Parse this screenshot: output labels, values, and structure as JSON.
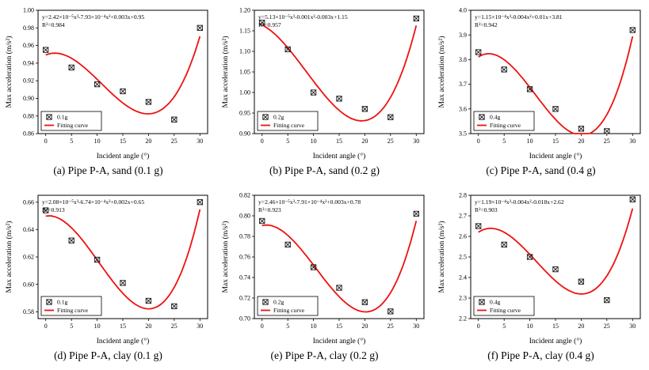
{
  "colors": {
    "curve": "#ee1111",
    "marker": "#1a1a1a",
    "axis": "#000000",
    "background": "#ffffff"
  },
  "marker_style": "open-square-x",
  "chart_data": [
    {
      "type": "scatter",
      "caption": "(a) Pipe P-A, sand (0.1 g)",
      "equation": "y=2.42×10⁻⁵x³-7.93×10⁻⁴x²+0.003x+0.95",
      "r_squared": "R²=0.984",
      "legend": [
        "0.1g",
        "Fitting curve"
      ],
      "legend_position": "lower-left",
      "grid": false,
      "xlabel": "Incident angle (°)",
      "ylabel": "Max acceleration (m/s²)",
      "x": [
        0,
        5,
        10,
        15,
        20,
        25,
        30
      ],
      "y": [
        0.955,
        0.935,
        0.916,
        0.908,
        0.896,
        0.876,
        0.98
      ],
      "xlim": [
        -1.5,
        31.5
      ],
      "ylim": [
        0.86,
        1.0
      ],
      "xticks": [
        0,
        5,
        10,
        15,
        20,
        25,
        30
      ],
      "yticks": [
        0.86,
        0.88,
        0.9,
        0.92,
        0.94,
        0.96,
        0.98,
        1.0
      ],
      "ytick_decimals": 2
    },
    {
      "type": "scatter",
      "caption": "(b) Pipe P-A, sand (0.2 g)",
      "equation": "y=5.13×10⁻⁵x³-0.001x²-0.003x+1.15",
      "r_squared": "R²=0.957",
      "legend": [
        "0.2g",
        "Fitting curve"
      ],
      "legend_position": "lower-left",
      "grid": false,
      "xlabel": "Incident angle (°)",
      "ylabel": "Max acceleration (m/s²)",
      "x": [
        0,
        5,
        10,
        15,
        20,
        25,
        30
      ],
      "y": [
        1.17,
        1.105,
        1.0,
        0.985,
        0.96,
        0.94,
        1.18
      ],
      "xlim": [
        -1.5,
        31.5
      ],
      "ylim": [
        0.9,
        1.2
      ],
      "xticks": [
        0,
        5,
        10,
        15,
        20,
        25,
        30
      ],
      "yticks": [
        0.9,
        0.95,
        1.0,
        1.05,
        1.1,
        1.15,
        1.2
      ],
      "ytick_decimals": 2
    },
    {
      "type": "scatter",
      "caption": "(c) Pipe P-A, sand (0.4 g)",
      "equation": "y=1.15×10⁻⁴x³-0.004x²+0.01x+3.81",
      "r_squared": "R²=0.942",
      "legend": [
        "0.4g",
        "Fitting curve"
      ],
      "legend_position": "lower-left",
      "grid": false,
      "xlabel": "Incident angle (°)",
      "ylabel": "Max acceleration (m/s²)",
      "x": [
        0,
        5,
        10,
        15,
        20,
        25,
        30
      ],
      "y": [
        3.83,
        3.76,
        3.68,
        3.6,
        3.52,
        3.51,
        3.92
      ],
      "xlim": [
        -1.5,
        31.5
      ],
      "ylim": [
        3.5,
        4.0
      ],
      "xticks": [
        0,
        5,
        10,
        15,
        20,
        25,
        30
      ],
      "yticks": [
        3.5,
        3.6,
        3.7,
        3.8,
        3.9,
        4.0
      ],
      "ytick_decimals": 1
    },
    {
      "type": "scatter",
      "caption": "(d) Pipe P-A, clay (0.1 g)",
      "equation": "y=2.08×10⁻⁵x³-6.74×10⁻⁴x²+0.002x+0.65",
      "r_squared": "R²=0.913",
      "legend": [
        "0.1g",
        "Fitting curve"
      ],
      "legend_position": "lower-left",
      "grid": false,
      "xlabel": "Incident angle (°)",
      "ylabel": "Max acceleration (m/s²)",
      "x": [
        0,
        5,
        10,
        15,
        20,
        25,
        30
      ],
      "y": [
        0.654,
        0.632,
        0.618,
        0.601,
        0.588,
        0.584,
        0.66
      ],
      "xlim": [
        -1.5,
        31.5
      ],
      "ylim": [
        0.575,
        0.665
      ],
      "xticks": [
        0,
        5,
        10,
        15,
        20,
        25,
        30
      ],
      "yticks": [
        0.58,
        0.6,
        0.62,
        0.64,
        0.66
      ],
      "ytick_decimals": 2
    },
    {
      "type": "scatter",
      "caption": "(e) Pipe P-A, clay (0.2 g)",
      "equation": "y=2.46×10⁻⁵x³-7.91×10⁻⁴x²+0.003x+0.78",
      "r_squared": "R²=0.923",
      "legend": [
        "0.2g",
        "Fitting curve"
      ],
      "legend_position": "lower-left",
      "grid": false,
      "xlabel": "Incident angle (°)",
      "ylabel": "Max acceleration (m/s²)",
      "x": [
        0,
        5,
        10,
        15,
        20,
        25,
        30
      ],
      "y": [
        0.795,
        0.772,
        0.75,
        0.73,
        0.716,
        0.707,
        0.802
      ],
      "xlim": [
        -1.5,
        31.5
      ],
      "ylim": [
        0.7,
        0.82
      ],
      "xticks": [
        0,
        5,
        10,
        15,
        20,
        25,
        30
      ],
      "yticks": [
        0.7,
        0.72,
        0.74,
        0.76,
        0.78,
        0.8,
        0.82
      ],
      "ytick_decimals": 2
    },
    {
      "type": "scatter",
      "caption": "(f) Pipe P-A, clay (0.4 g)",
      "equation": "y=1.19×10⁻⁴x³-0.004x²-0.018x+2.62",
      "r_squared": "R²=0.903",
      "legend": [
        "0.4g",
        "Fitting curve"
      ],
      "legend_position": "lower-left",
      "grid": false,
      "xlabel": "Incident angle (°)",
      "ylabel": "Max acceleration (m/s²)",
      "x": [
        0,
        5,
        10,
        15,
        20,
        25,
        30
      ],
      "y": [
        2.65,
        2.56,
        2.5,
        2.44,
        2.38,
        2.29,
        2.78
      ],
      "xlim": [
        -1.5,
        31.5
      ],
      "ylim": [
        2.2,
        2.8
      ],
      "xticks": [
        0,
        5,
        10,
        15,
        20,
        25,
        30
      ],
      "yticks": [
        2.2,
        2.3,
        2.4,
        2.5,
        2.6,
        2.7,
        2.8
      ],
      "ytick_decimals": 1
    }
  ]
}
